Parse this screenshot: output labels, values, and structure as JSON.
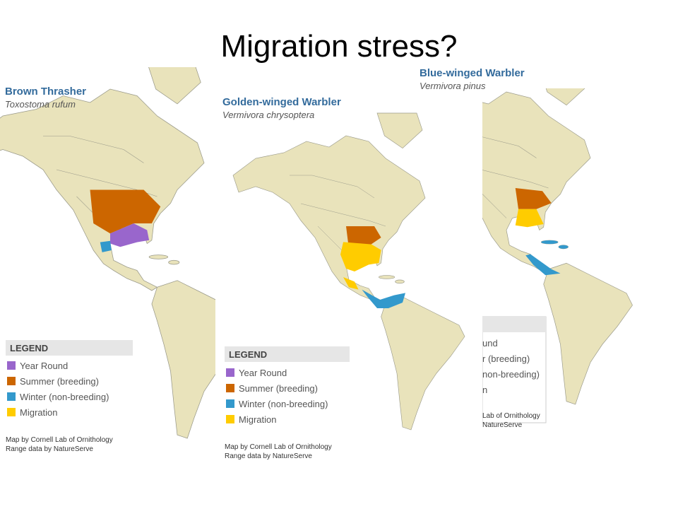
{
  "title": "Migration stress?",
  "maps": [
    {
      "common_name": "Brown Thrasher",
      "scientific_name": "Toxostoma rufum",
      "legend": {
        "title": "LEGEND",
        "items": [
          "Year Round",
          "Summer (breeding)",
          "Winter (non-breeding)",
          "Migration"
        ]
      },
      "credits": [
        "Map by Cornell Lab of Ornithology",
        "Range data by NatureServe"
      ]
    },
    {
      "common_name": "Golden-winged Warbler",
      "scientific_name": "Vermivora chrysoptera",
      "legend": {
        "title": "LEGEND",
        "items": [
          "Year Round",
          "Summer (breeding)",
          "Winter (non-breeding)",
          "Migration"
        ]
      },
      "credits": [
        "Map by Cornell Lab of Ornithology",
        "Range data by NatureServe"
      ]
    },
    {
      "common_name": "Blue-winged Warbler",
      "scientific_name": "Vermivora pinus",
      "legend": {
        "items": [
          "und",
          "r (breeding)",
          "non-breeding)",
          "n"
        ]
      },
      "credits": [
        "Lab of Ornithology",
        "NatureServe"
      ]
    }
  ]
}
